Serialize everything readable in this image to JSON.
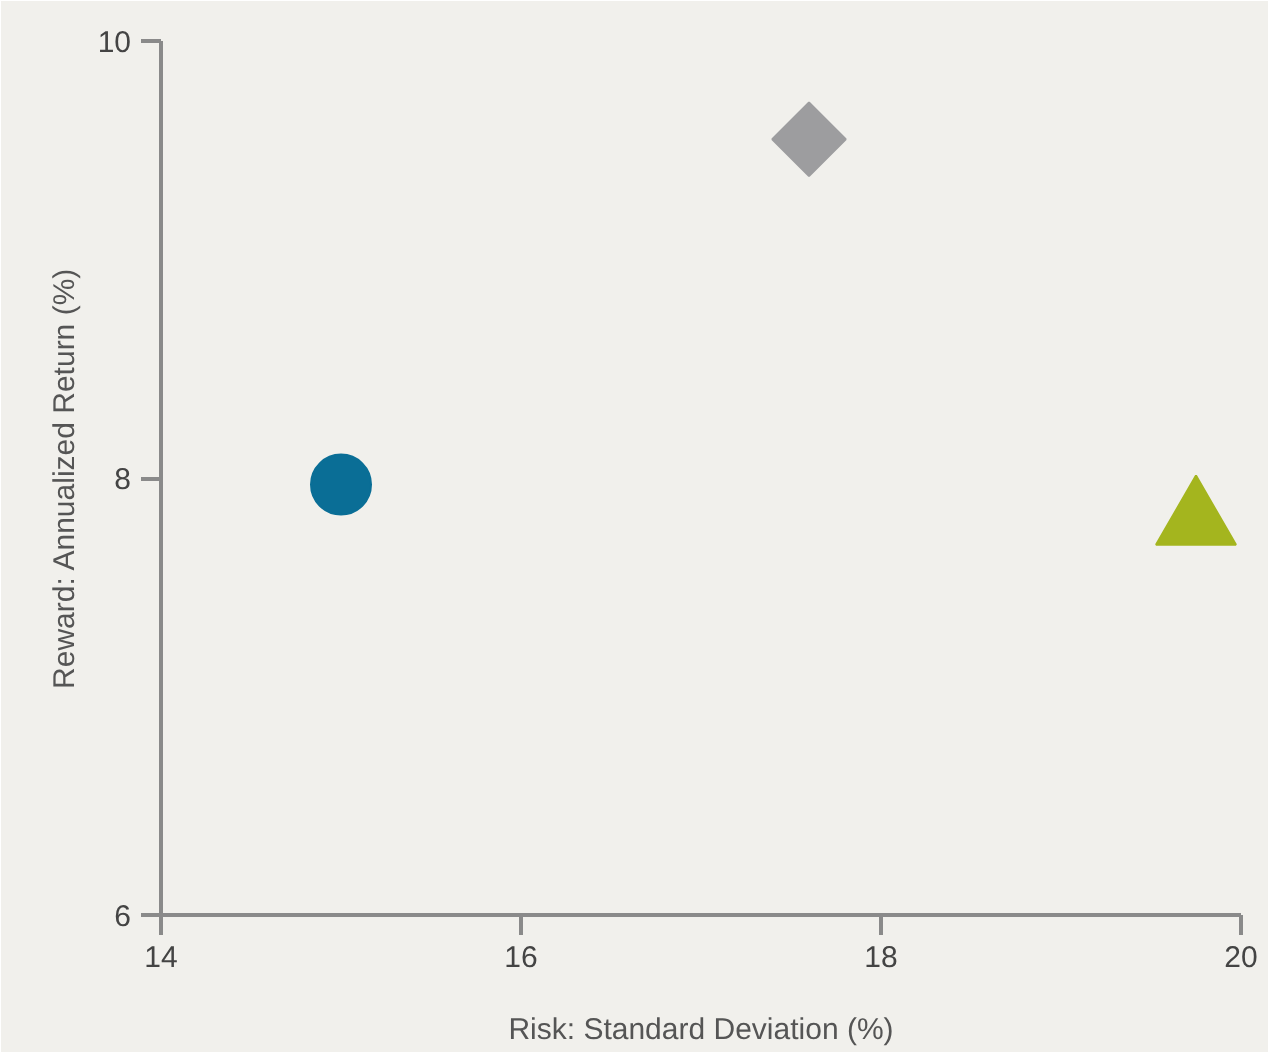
{
  "chart_data": {
    "type": "scatter",
    "xlabel": "Risk: Standard Deviation (%)",
    "ylabel": "Reward: Annualized Return (%)",
    "xlim": [
      14,
      20
    ],
    "ylim": [
      6,
      10
    ],
    "xticks": [
      14,
      16,
      18,
      20
    ],
    "yticks": [
      6,
      8,
      10
    ],
    "grid": false,
    "series": [
      {
        "color": "#0a6e96",
        "marker": "circle",
        "x": [
          15.0
        ],
        "values": [
          7.97
        ]
      },
      {
        "color": "#9d9d9f",
        "marker": "diamond",
        "x": [
          17.6
        ],
        "values": [
          9.55
        ]
      },
      {
        "color": "#a4b51e",
        "marker": "triangle",
        "x": [
          19.75
        ],
        "values": [
          7.8
        ]
      }
    ]
  }
}
